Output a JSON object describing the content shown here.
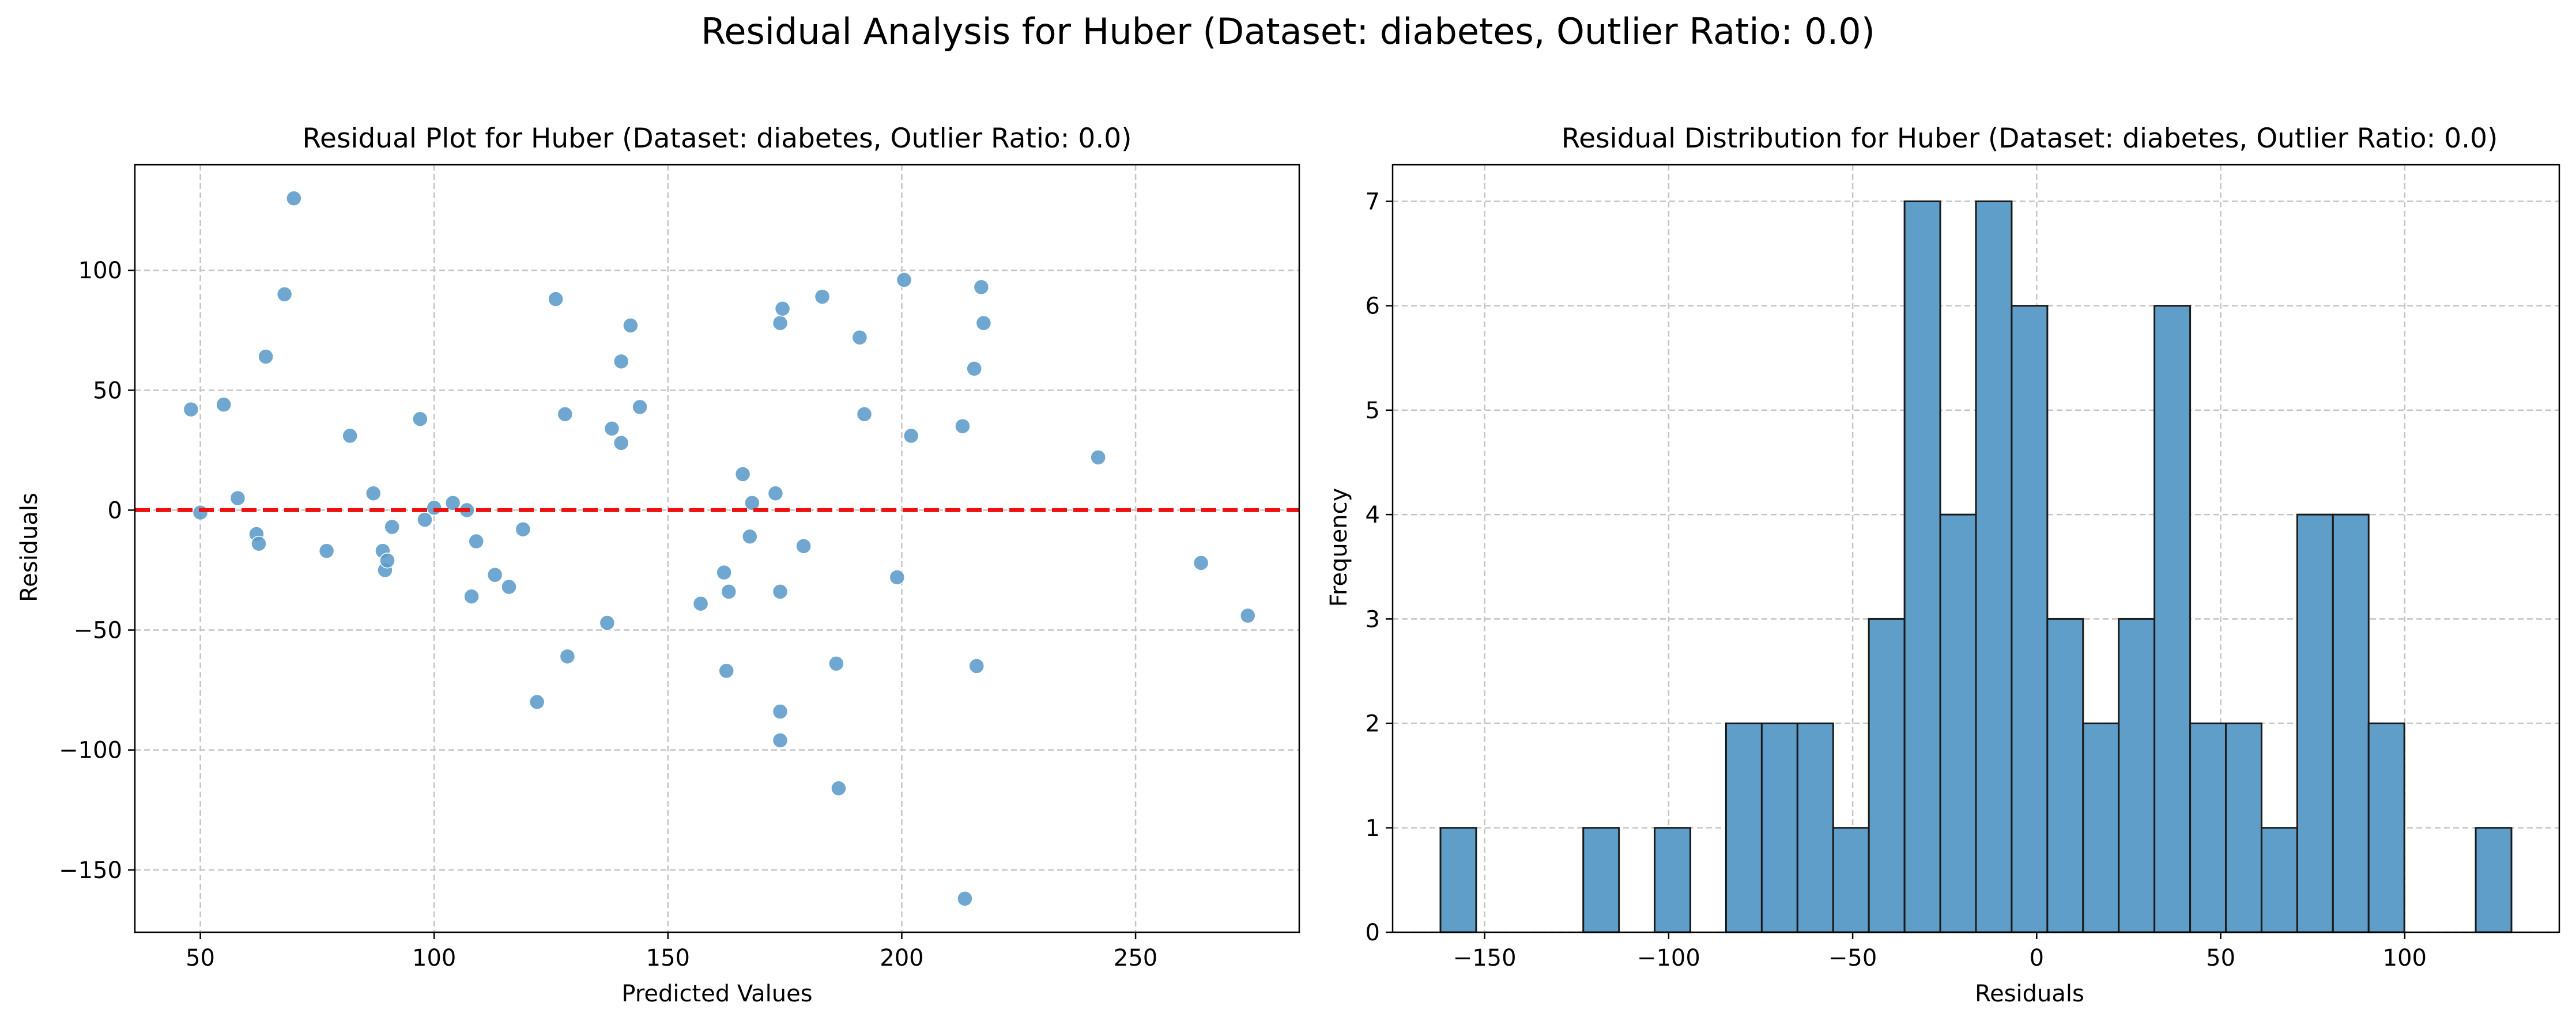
{
  "figure": {
    "suptitle": "Residual Analysis for Huber (Dataset: diabetes, Outlier Ratio: 0.0)"
  },
  "colors": {
    "points": "#5b9bc9",
    "bars": "#5f9ec9",
    "bar_edge": "#1a1a1a",
    "zero_line": "#ee1111",
    "grid": "#c4c4c4"
  },
  "chart_data": [
    {
      "type": "scatter",
      "title": "Residual Plot for Huber (Dataset: diabetes, Outlier Ratio: 0.0)",
      "xlabel": "Predicted Values",
      "ylabel": "Residuals",
      "xlim": [
        36,
        285
      ],
      "ylim": [
        -176,
        144
      ],
      "xticks": [
        50,
        100,
        150,
        200,
        250
      ],
      "yticks": [
        -150,
        -100,
        -50,
        0,
        50,
        100
      ],
      "xtick_labels": [
        "50",
        "100",
        "150",
        "200",
        "250"
      ],
      "ytick_labels": [
        "−150",
        "−100",
        "−50",
        "0",
        "50",
        "100"
      ],
      "grid": true,
      "reference_line": {
        "y": 0,
        "style": "dashed",
        "color": "red"
      },
      "points": [
        [
          48,
          42
        ],
        [
          50,
          -1
        ],
        [
          55,
          44
        ],
        [
          58,
          5
        ],
        [
          62,
          -10
        ],
        [
          62.5,
          -14
        ],
        [
          64,
          64
        ],
        [
          68,
          90
        ],
        [
          70,
          130
        ],
        [
          77,
          -17
        ],
        [
          82,
          31
        ],
        [
          87,
          7
        ],
        [
          89,
          -17
        ],
        [
          89.5,
          -25
        ],
        [
          90,
          -21
        ],
        [
          91,
          -7
        ],
        [
          97,
          38
        ],
        [
          98,
          -4
        ],
        [
          100,
          1
        ],
        [
          104,
          3
        ],
        [
          107,
          0
        ],
        [
          108,
          -36
        ],
        [
          109,
          -13
        ],
        [
          113,
          -27
        ],
        [
          116,
          -32
        ],
        [
          119,
          -8
        ],
        [
          122,
          -80
        ],
        [
          126,
          88
        ],
        [
          128,
          40
        ],
        [
          128.5,
          -61
        ],
        [
          137,
          -47
        ],
        [
          138,
          34
        ],
        [
          140,
          62
        ],
        [
          140,
          28
        ],
        [
          142,
          77
        ],
        [
          144,
          43
        ],
        [
          157,
          -39
        ],
        [
          162,
          -26
        ],
        [
          162.5,
          -67
        ],
        [
          163,
          -34
        ],
        [
          166,
          15
        ],
        [
          168,
          3
        ],
        [
          167.5,
          -11
        ],
        [
          173,
          7
        ],
        [
          174,
          78
        ],
        [
          174.5,
          84
        ],
        [
          174,
          -34
        ],
        [
          174,
          -84
        ],
        [
          174,
          -96
        ],
        [
          179,
          -15
        ],
        [
          183,
          89
        ],
        [
          186,
          -64
        ],
        [
          186.5,
          -116
        ],
        [
          191,
          72
        ],
        [
          192,
          40
        ],
        [
          199,
          -28
        ],
        [
          200.5,
          96
        ],
        [
          202,
          31
        ],
        [
          213,
          35
        ],
        [
          213.5,
          -162
        ],
        [
          215.5,
          59
        ],
        [
          216,
          -65
        ],
        [
          217,
          93
        ],
        [
          217.5,
          78
        ],
        [
          242,
          22
        ],
        [
          264,
          -22
        ],
        [
          274,
          -44
        ]
      ]
    },
    {
      "type": "bar",
      "subtype": "histogram",
      "title": "Residual Distribution for Huber (Dataset: diabetes, Outlier Ratio: 0.0)",
      "xlabel": "Residuals",
      "ylabel": "Frequency",
      "xlim": [
        -175,
        142
      ],
      "ylim": [
        0,
        7.35
      ],
      "xticks": [
        -150,
        -100,
        -50,
        0,
        50,
        100
      ],
      "yticks": [
        0,
        1,
        2,
        3,
        4,
        5,
        6,
        7
      ],
      "xtick_labels": [
        "−150",
        "−100",
        "−50",
        "0",
        "50",
        "100"
      ],
      "ytick_labels": [
        "0",
        "1",
        "2",
        "3",
        "4",
        "5",
        "6",
        "7"
      ],
      "grid": true,
      "bin_start": -162,
      "bin_width": 9.7,
      "counts": [
        1,
        0,
        0,
        0,
        1,
        0,
        1,
        0,
        2,
        2,
        2,
        1,
        3,
        7,
        4,
        7,
        6,
        3,
        2,
        3,
        6,
        2,
        2,
        1,
        4,
        4,
        2,
        0,
        0,
        1
      ]
    }
  ]
}
